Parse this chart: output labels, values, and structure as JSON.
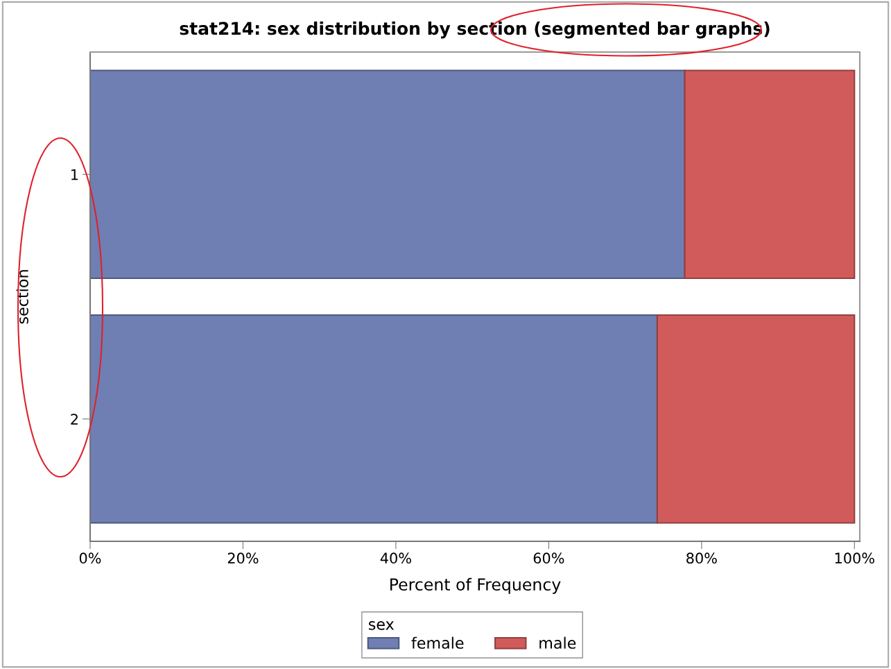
{
  "chart_data": {
    "type": "bar",
    "orientation": "horizontal",
    "stacked": true,
    "title": "stat214: sex distribution by section (segmented bar graphs)",
    "xlabel": "Percent of Frequency",
    "ylabel": "section",
    "legend_title": "sex",
    "categories": [
      "1",
      "2"
    ],
    "series": [
      {
        "name": "female",
        "color": "#6f7fb3",
        "values": [
          77.8,
          74.2
        ]
      },
      {
        "name": "male",
        "color": "#d15b5b",
        "values": [
          22.2,
          25.8
        ]
      }
    ],
    "xlim": [
      0,
      100.7
    ],
    "xticks": [
      {
        "value": 0,
        "label": "0%"
      },
      {
        "value": 20,
        "label": "20%"
      },
      {
        "value": 40,
        "label": "40%"
      },
      {
        "value": 60,
        "label": "60%"
      },
      {
        "value": 80,
        "label": "80%"
      },
      {
        "value": 100,
        "label": "100%"
      }
    ],
    "legend": "bottom",
    "grid": false
  }
}
